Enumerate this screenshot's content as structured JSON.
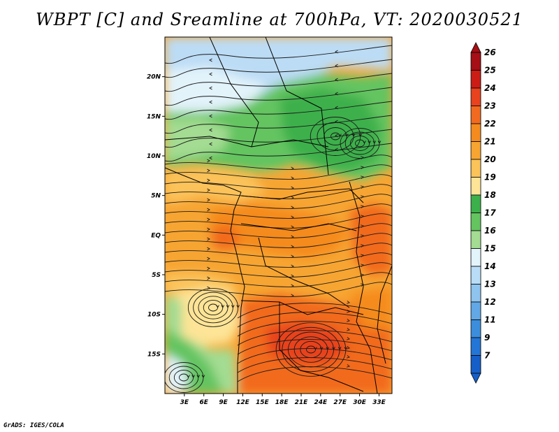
{
  "title": "WBPT [C] and Sreamline at 700hPa, VT: 2020030521",
  "footer": "GrADS: IGES/COLA",
  "map": {
    "lat_ticks": [
      {
        "value": 20,
        "label": "20N"
      },
      {
        "value": 15,
        "label": "15N"
      },
      {
        "value": 10,
        "label": "10N"
      },
      {
        "value": 5,
        "label": "5N"
      },
      {
        "value": 0,
        "label": "EQ"
      },
      {
        "value": -5,
        "label": "5S"
      },
      {
        "value": -10,
        "label": "10S"
      },
      {
        "value": -15,
        "label": "15S"
      }
    ],
    "lon_ticks": [
      {
        "value": 3,
        "label": "3E"
      },
      {
        "value": 6,
        "label": "6E"
      },
      {
        "value": 9,
        "label": "9E"
      },
      {
        "value": 12,
        "label": "12E"
      },
      {
        "value": 15,
        "label": "15E"
      },
      {
        "value": 18,
        "label": "18E"
      },
      {
        "value": 21,
        "label": "21E"
      },
      {
        "value": 24,
        "label": "24E"
      },
      {
        "value": 27,
        "label": "27E"
      },
      {
        "value": 30,
        "label": "30E"
      },
      {
        "value": 33,
        "label": "33E"
      }
    ],
    "lon_range": [
      0,
      35
    ],
    "lat_range": [
      -20,
      25
    ]
  },
  "colorbar": {
    "levels": [
      {
        "label": "26",
        "color": "#a50f15"
      },
      {
        "label": "25",
        "color": "#cb1d15"
      },
      {
        "label": "24",
        "color": "#e8421f"
      },
      {
        "label": "23",
        "color": "#f26a1f"
      },
      {
        "label": "22",
        "color": "#f58b1f"
      },
      {
        "label": "21",
        "color": "#f7a532"
      },
      {
        "label": "20",
        "color": "#fbc35a"
      },
      {
        "label": "19",
        "color": "#fde496"
      },
      {
        "label": "18",
        "color": "#3cb04b"
      },
      {
        "label": "17",
        "color": "#64c460"
      },
      {
        "label": "16",
        "color": "#a3dc92"
      },
      {
        "label": "15",
        "color": "#e3f4fb"
      },
      {
        "label": "14",
        "color": "#b9ddf6"
      },
      {
        "label": "13",
        "color": "#8fc4ef"
      },
      {
        "label": "12",
        "color": "#62a8e6"
      },
      {
        "label": "11",
        "color": "#3c8edd"
      },
      {
        "label": "9",
        "color": "#2476d6"
      },
      {
        "label": "7",
        "color": "#165fc9"
      }
    ]
  },
  "field_colors": {
    "light_blue": "#bcdcf5",
    "pale_cyan": "#e2f3fa",
    "light_green": "#a3dc92",
    "mid_green": "#64c460",
    "dark_green": "#3cb04b",
    "pale_yellow": "#fde496",
    "light_orange": "#fbc35a",
    "orange": "#f7a532",
    "deep_orange": "#f58b1f",
    "red_orange": "#f26a1f",
    "red": "#e8421f"
  }
}
